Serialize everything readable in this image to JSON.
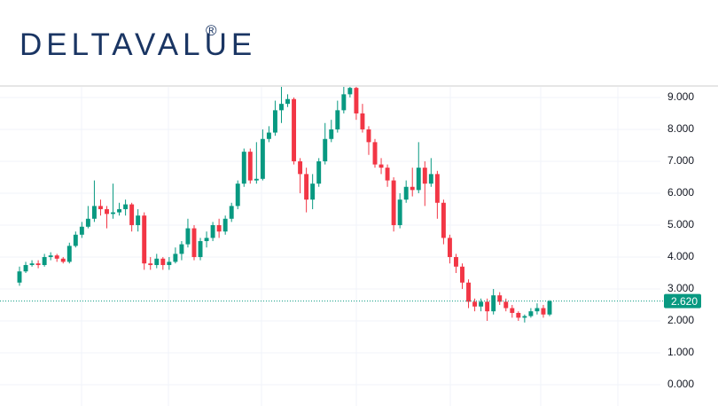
{
  "header": {
    "logo": "DELTAVALUE",
    "logo_mark": "®"
  },
  "chart_data": {
    "type": "candlestick",
    "up_color": "#089981",
    "down_color": "#f23645",
    "grid": true,
    "ylim": [
      -0.667,
      9.36
    ],
    "yticks": [
      {
        "value": 0,
        "label": "0.000"
      },
      {
        "value": 1,
        "label": "1.000"
      },
      {
        "value": 2,
        "label": "2.000"
      },
      {
        "value": 3,
        "label": "3.000"
      },
      {
        "value": 4,
        "label": "4.000"
      },
      {
        "value": 5,
        "label": "5.000"
      },
      {
        "value": 6,
        "label": "6.000"
      },
      {
        "value": 7,
        "label": "7.000"
      },
      {
        "value": 8,
        "label": "8.000"
      },
      {
        "value": 9,
        "label": "9.000"
      }
    ],
    "last_price": {
      "value": 2.62,
      "label": "2.620"
    },
    "open": [
      3.2,
      3.55,
      3.75,
      3.8,
      3.75,
      4.0,
      4.05,
      3.95,
      3.85,
      4.35,
      4.7,
      4.95,
      5.2,
      5.6,
      5.5,
      5.35,
      5.4,
      5.5,
      5.65,
      5.0,
      5.3,
      3.8,
      3.75,
      3.95,
      3.75,
      3.85,
      4.1,
      4.4,
      4.9,
      4.0,
      4.5,
      4.6,
      5.0,
      4.8,
      5.2,
      5.6,
      6.3,
      7.3,
      6.4,
      6.45,
      7.7,
      7.9,
      8.6,
      8.8,
      8.95,
      7.0,
      6.6,
      5.8,
      6.3,
      7.0,
      7.7,
      8.0,
      8.6,
      9.1,
      9.3,
      8.5,
      8.0,
      7.6,
      6.9,
      6.8,
      6.4,
      5.0,
      5.8,
      6.2,
      6.1,
      6.8,
      6.3,
      6.6,
      5.7,
      4.6,
      4.0,
      3.7,
      3.2,
      2.6,
      2.45,
      2.6,
      2.3,
      2.8,
      2.6,
      2.4,
      2.25,
      2.1,
      2.15,
      2.3,
      2.4,
      2.2
    ],
    "high": [
      3.7,
      3.85,
      3.9,
      3.9,
      4.1,
      4.15,
      4.1,
      4.0,
      4.45,
      4.8,
      5.1,
      5.6,
      6.4,
      5.8,
      5.6,
      6.3,
      5.7,
      5.8,
      5.7,
      5.5,
      5.4,
      4.0,
      4.1,
      4.0,
      4.0,
      4.3,
      4.5,
      5.2,
      5.0,
      4.6,
      4.8,
      5.1,
      5.2,
      5.3,
      5.7,
      6.4,
      7.4,
      7.4,
      7.6,
      8.0,
      8.1,
      8.9,
      9.4,
      9.1,
      9.0,
      7.1,
      6.8,
      6.6,
      7.1,
      8.2,
      8.3,
      8.9,
      9.4,
      9.4,
      9.4,
      8.8,
      8.1,
      7.7,
      7.1,
      6.9,
      6.5,
      6.0,
      6.4,
      6.8,
      7.6,
      7.0,
      7.1,
      6.7,
      5.8,
      4.7,
      4.1,
      3.8,
      3.3,
      2.7,
      2.7,
      2.7,
      3.0,
      2.9,
      2.7,
      2.5,
      2.3,
      2.2,
      2.4,
      2.55,
      2.5,
      2.65
    ],
    "low": [
      3.1,
      3.5,
      3.7,
      3.65,
      3.7,
      3.9,
      3.85,
      3.8,
      3.8,
      4.3,
      4.6,
      4.9,
      5.1,
      5.3,
      4.9,
      5.2,
      5.3,
      5.3,
      4.8,
      4.8,
      3.6,
      3.6,
      3.65,
      3.6,
      3.6,
      3.8,
      3.9,
      4.3,
      3.9,
      3.9,
      4.3,
      4.5,
      4.6,
      4.7,
      5.1,
      5.5,
      6.2,
      6.3,
      6.3,
      6.4,
      7.6,
      7.8,
      8.2,
      8.7,
      6.9,
      6.0,
      5.4,
      5.5,
      6.2,
      6.9,
      7.6,
      7.9,
      8.5,
      9.0,
      8.3,
      7.9,
      7.2,
      6.8,
      6.6,
      6.2,
      4.8,
      4.9,
      5.7,
      5.9,
      6.0,
      5.6,
      6.2,
      5.2,
      4.4,
      3.8,
      3.5,
      3.0,
      2.4,
      2.3,
      2.3,
      2.0,
      2.2,
      2.5,
      2.3,
      2.1,
      2.0,
      1.95,
      2.1,
      2.2,
      2.1,
      2.15
    ],
    "close": [
      3.55,
      3.75,
      3.8,
      3.75,
      4.0,
      4.05,
      3.95,
      3.85,
      4.35,
      4.7,
      4.95,
      5.2,
      5.6,
      5.5,
      5.35,
      5.4,
      5.5,
      5.65,
      5.0,
      5.3,
      3.8,
      3.75,
      3.95,
      3.75,
      3.85,
      4.1,
      4.4,
      4.9,
      4.0,
      4.5,
      4.6,
      5.0,
      4.8,
      5.2,
      5.6,
      6.3,
      7.3,
      6.4,
      6.45,
      7.7,
      7.9,
      8.6,
      8.8,
      8.95,
      7.0,
      6.6,
      5.8,
      6.3,
      7.0,
      7.7,
      8.0,
      8.6,
      9.1,
      9.3,
      8.5,
      8.0,
      7.6,
      6.9,
      6.8,
      6.4,
      5.0,
      5.8,
      6.2,
      6.1,
      6.8,
      6.3,
      6.6,
      5.7,
      4.6,
      4.0,
      3.7,
      3.2,
      2.6,
      2.45,
      2.6,
      2.3,
      2.8,
      2.6,
      2.4,
      2.25,
      2.1,
      2.15,
      2.3,
      2.4,
      2.2,
      2.62
    ]
  }
}
